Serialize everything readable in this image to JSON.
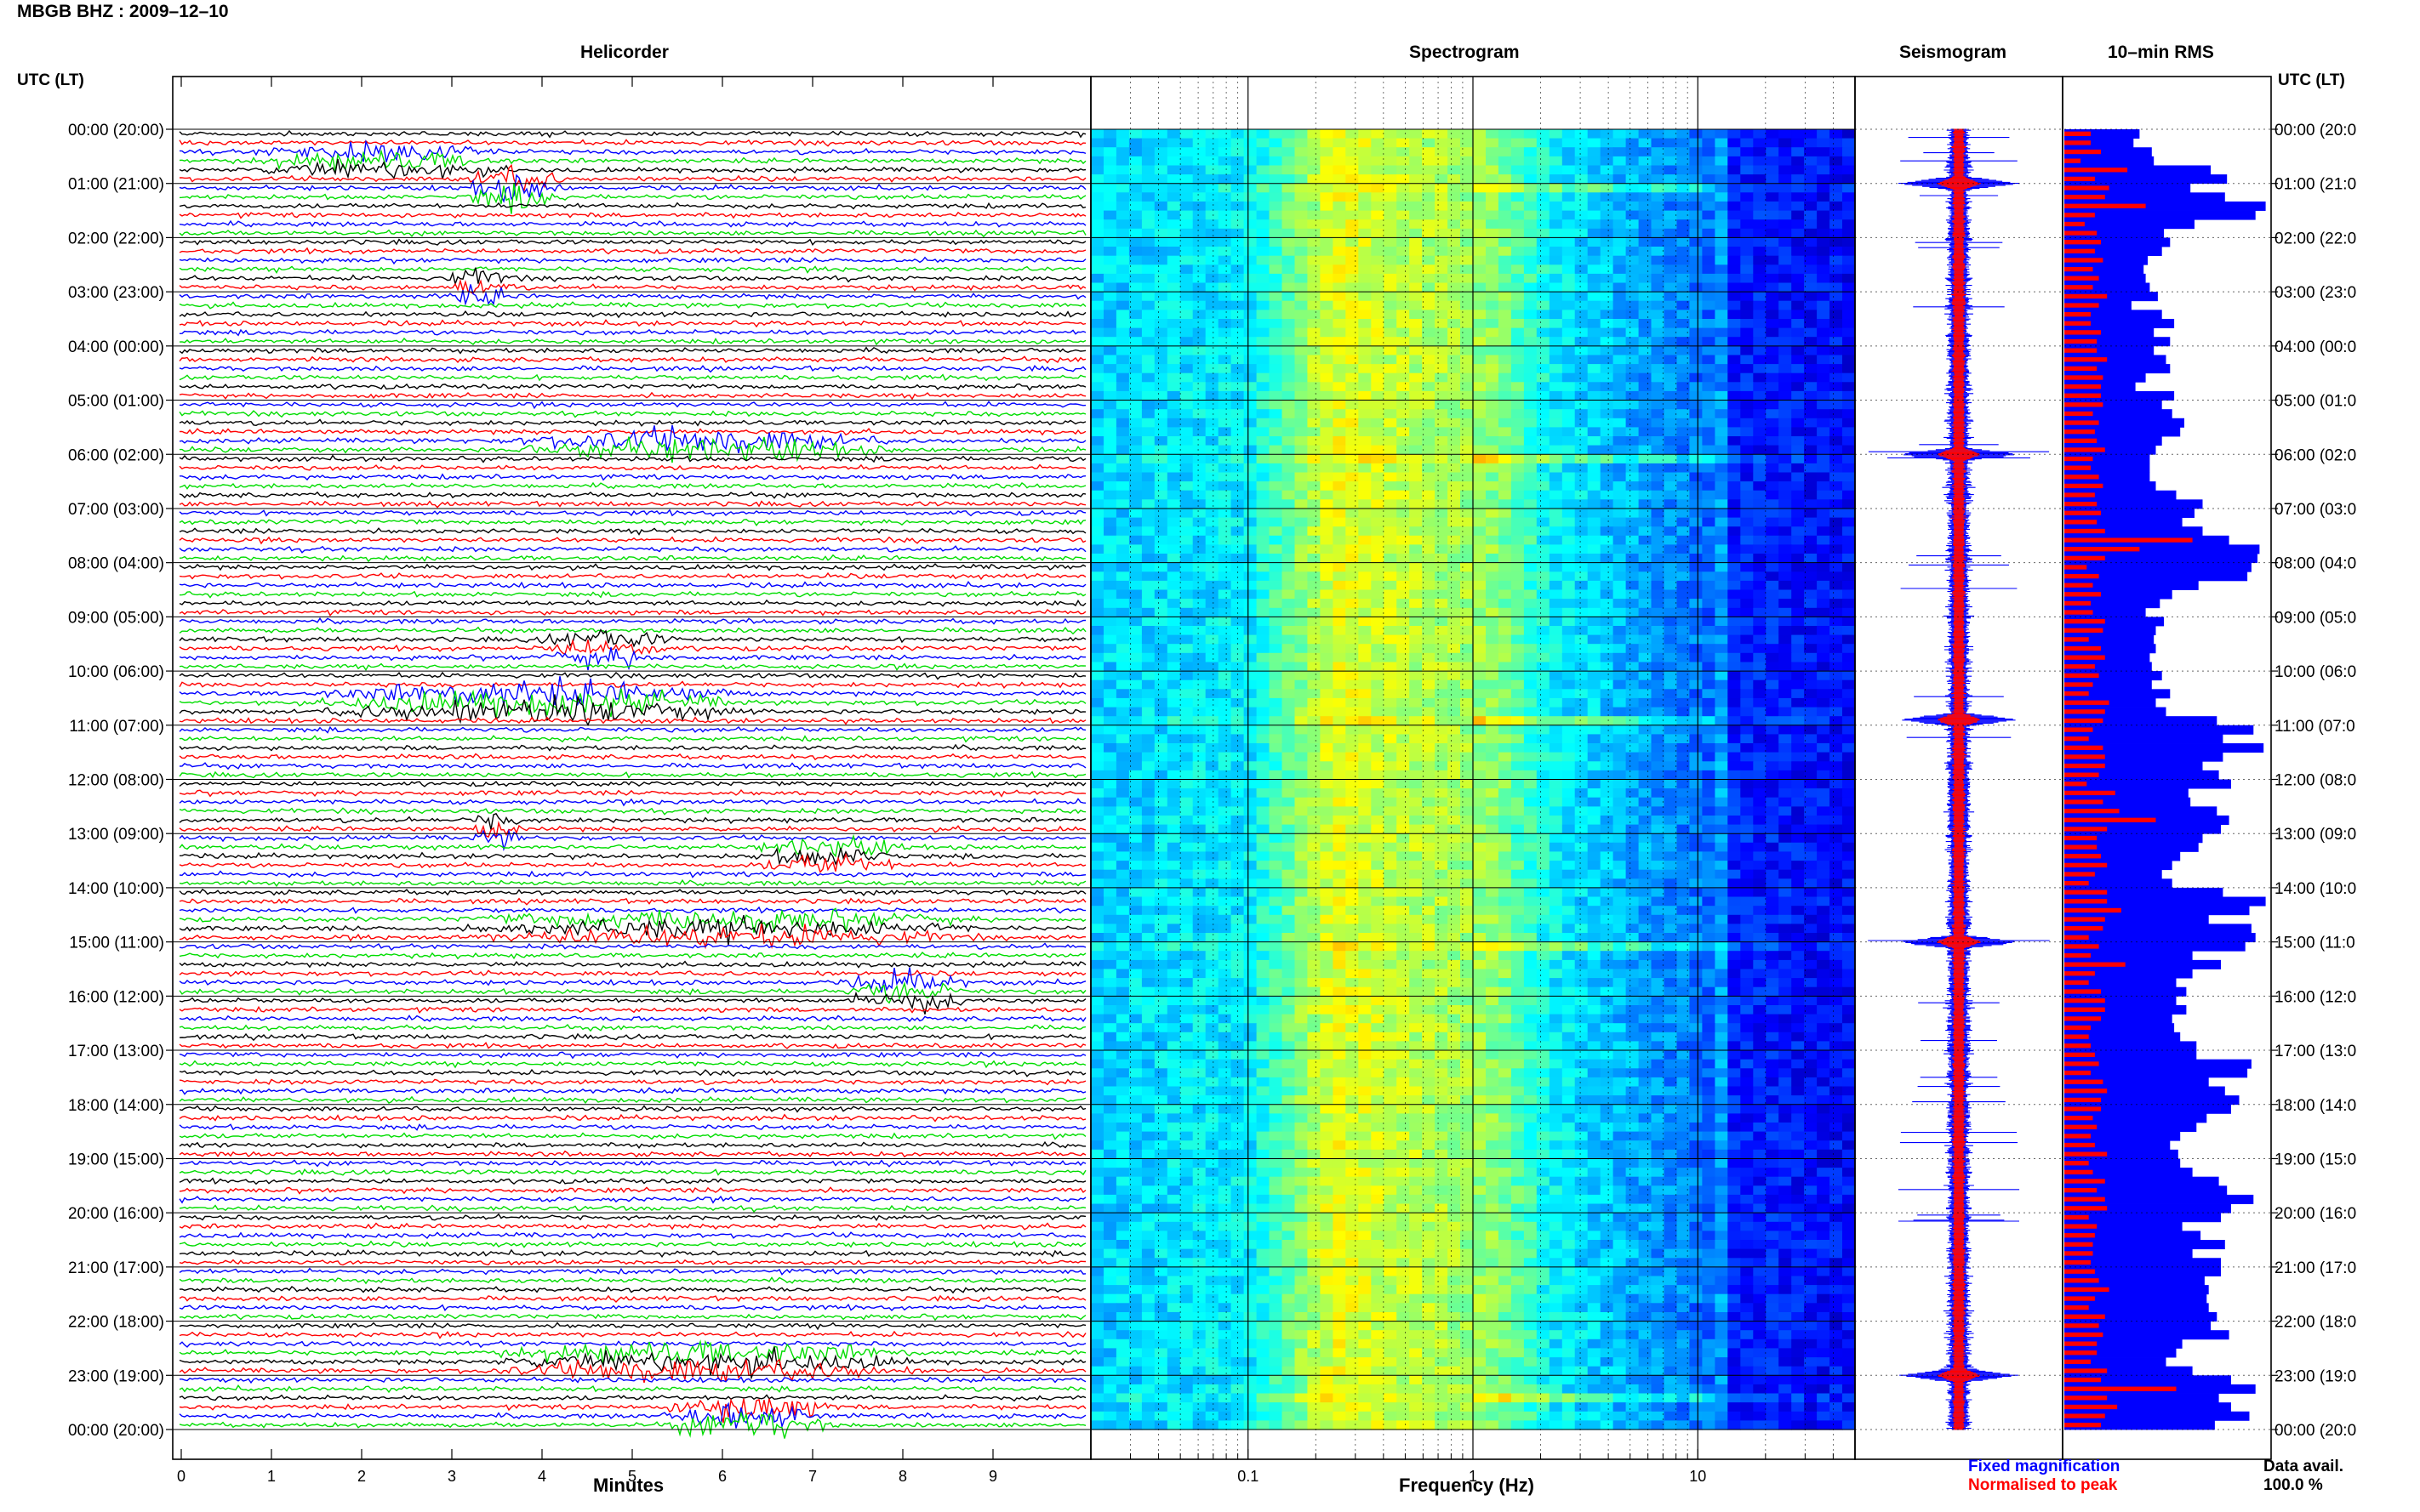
{
  "header": {
    "title": "MBGB BHZ : 2009–12–10",
    "utc_label_left": "UTC (LT)",
    "utc_label_right": "UTC (LT)"
  },
  "panels": {
    "helicorder": "Helicorder",
    "spectrogram": "Spectrogram",
    "seismogram": "Seismogram",
    "rms": "10–min RMS"
  },
  "time_labels": [
    "00:00 (20:00)",
    "01:00 (21:00)",
    "02:00 (22:00)",
    "03:00 (23:00)",
    "04:00 (00:00)",
    "05:00 (01:00)",
    "06:00 (02:00)",
    "07:00 (03:00)",
    "08:00 (04:00)",
    "09:00 (05:00)",
    "10:00 (06:00)",
    "11:00 (07:00)",
    "12:00 (08:00)",
    "13:00 (09:00)",
    "14:00 (10:00)",
    "15:00 (11:00)",
    "16:00 (12:00)",
    "17:00 (13:00)",
    "18:00 (14:00)",
    "19:00 (15:00)",
    "20:00 (16:00)",
    "21:00 (17:00)",
    "22:00 (18:00)",
    "23:00 (19:00)",
    "00:00 (20:00)"
  ],
  "time_labels_right": [
    "00:00 (20:0",
    "01:00 (21:0",
    "02:00 (22:0",
    "03:00 (23:0",
    "04:00 (00:0",
    "05:00 (01:0",
    "06:00 (02:0",
    "07:00 (03:0",
    "08:00 (04:0",
    "09:00 (05:0",
    "10:00 (06:0",
    "11:00 (07:0",
    "12:00 (08:0",
    "13:00 (09:0",
    "14:00 (10:0",
    "15:00 (11:0",
    "16:00 (12:0",
    "17:00 (13:0",
    "18:00 (14:0",
    "19:00 (15:0",
    "20:00 (16:0",
    "21:00 (17:0",
    "22:00 (18:0",
    "23:00 (19:0",
    "00:00 (20:0"
  ],
  "footer": {
    "legend_fixed": "Fixed magnification",
    "legend_normalised": "Normalised to peak",
    "data_avail_label": "Data avail.",
    "data_avail_value": "100.0 %"
  },
  "colors": {
    "trace_cycle": [
      "#000000",
      "#ff0000",
      "#0000ff",
      "#00dd00"
    ],
    "fixed": "#0000ff",
    "normalised": "#ff0000"
  },
  "chart_data": [
    {
      "type": "line",
      "panel": "Helicorder",
      "xlabel": "Minutes",
      "x_ticks": [
        0,
        1,
        2,
        3,
        4,
        5,
        6,
        7,
        8,
        9
      ],
      "xlim": [
        0,
        10
      ],
      "traces_per_hour": 6,
      "hours": 24,
      "events": [
        {
          "hour": 0.55,
          "start_min": 0.7,
          "duration_min": 3.0,
          "amplitude": 1.6
        },
        {
          "hour": 0.95,
          "start_min": 3.1,
          "duration_min": 1.2,
          "amplitude": 2.2
        },
        {
          "hour": 2.9,
          "start_min": 2.8,
          "duration_min": 1.0,
          "amplitude": 1.4
        },
        {
          "hour": 5.75,
          "start_min": 3.5,
          "duration_min": 4.5,
          "amplitude": 2.0
        },
        {
          "hour": 9.5,
          "start_min": 3.9,
          "duration_min": 1.6,
          "amplitude": 1.6
        },
        {
          "hour": 10.5,
          "start_min": 1.4,
          "duration_min": 5.0,
          "amplitude": 2.2
        },
        {
          "hour": 12.9,
          "start_min": 3.2,
          "duration_min": 0.6,
          "amplitude": 1.6
        },
        {
          "hour": 13.4,
          "start_min": 6.3,
          "duration_min": 1.8,
          "amplitude": 1.6
        },
        {
          "hour": 14.7,
          "start_min": 3.0,
          "duration_min": 6.0,
          "amplitude": 1.8
        },
        {
          "hour": 15.9,
          "start_min": 7.3,
          "duration_min": 1.5,
          "amplitude": 1.8
        },
        {
          "hour": 22.6,
          "start_min": 3.3,
          "duration_min": 5.0,
          "amplitude": 2.0
        },
        {
          "hour": 23.7,
          "start_min": 5.3,
          "duration_min": 2.0,
          "amplitude": 2.6
        }
      ]
    },
    {
      "type": "heatmap",
      "panel": "Spectrogram",
      "xlabel": "Frequency (Hz)",
      "x_scale": "log",
      "xlim": [
        0.02,
        50
      ],
      "x_tick_labels": [
        "0.1",
        "1",
        "10"
      ],
      "colormap": "jet",
      "rows": 144
    },
    {
      "type": "line",
      "panel": "Seismogram",
      "series": [
        {
          "name": "Fixed magnification",
          "color": "#0000ff"
        },
        {
          "name": "Normalised to peak",
          "color": "#ff0000"
        }
      ],
      "event_hours": [
        1,
        6,
        10.9,
        15,
        23
      ]
    },
    {
      "type": "bar",
      "panel": "10–min RMS",
      "orientation": "horizontal",
      "bins": 144,
      "series": [
        {
          "name": "Fixed magnification",
          "color": "#0000ff"
        },
        {
          "name": "Normalised to peak",
          "color": "#ff0000"
        }
      ],
      "values_fixed": [
        0.37,
        0.34,
        0.43,
        0.44,
        0.72,
        0.8,
        0.62,
        0.79,
        0.99,
        0.94,
        0.64,
        0.49,
        0.52,
        0.48,
        0.41,
        0.39,
        0.4,
        0.42,
        0.46,
        0.33,
        0.48,
        0.54,
        0.44,
        0.52,
        0.44,
        0.5,
        0.52,
        0.4,
        0.35,
        0.54,
        0.48,
        0.53,
        0.59,
        0.57,
        0.48,
        0.45,
        0.42,
        0.42,
        0.42,
        0.45,
        0.55,
        0.68,
        0.64,
        0.58,
        0.68,
        0.81,
        0.96,
        0.95,
        0.92,
        0.9,
        0.66,
        0.53,
        0.47,
        0.4,
        0.49,
        0.45,
        0.44,
        0.45,
        0.42,
        0.43,
        0.48,
        0.43,
        0.52,
        0.45,
        0.5,
        0.75,
        0.93,
        0.78,
        0.98,
        0.78,
        0.68,
        0.76,
        0.82,
        0.61,
        0.62,
        0.75,
        0.81,
        0.77,
        0.68,
        0.66,
        0.57,
        0.53,
        0.48,
        0.53,
        0.78,
        0.99,
        0.91,
        0.71,
        0.92,
        0.94,
        0.89,
        0.63,
        0.77,
        0.63,
        0.55,
        0.6,
        0.55,
        0.6,
        0.53,
        0.54,
        0.57,
        0.65,
        0.65,
        0.92,
        0.9,
        0.71,
        0.79,
        0.86,
        0.82,
        0.7,
        0.65,
        0.57,
        0.52,
        0.56,
        0.57,
        0.63,
        0.76,
        0.8,
        0.93,
        0.82,
        0.77,
        0.58,
        0.67,
        0.79,
        0.63,
        0.77,
        0.77,
        0.69,
        0.71,
        0.7,
        0.71,
        0.75,
        0.72,
        0.81,
        0.58,
        0.55,
        0.5,
        0.63,
        0.82,
        0.94,
        0.76,
        0.82,
        0.91,
        0.74
      ],
      "values_normalised": [
        0.13,
        0.13,
        0.18,
        0.08,
        0.31,
        0.15,
        0.22,
        0.2,
        0.4,
        0.15,
        0.1,
        0.16,
        0.18,
        0.15,
        0.19,
        0.14,
        0.17,
        0.14,
        0.21,
        0.17,
        0.13,
        0.13,
        0.18,
        0.16,
        0.16,
        0.21,
        0.16,
        0.19,
        0.18,
        0.18,
        0.19,
        0.14,
        0.17,
        0.15,
        0.16,
        0.2,
        0.14,
        0.13,
        0.17,
        0.19,
        0.15,
        0.16,
        0.18,
        0.16,
        0.2,
        0.63,
        0.37,
        0.2,
        0.11,
        0.17,
        0.14,
        0.18,
        0.13,
        0.14,
        0.2,
        0.19,
        0.12,
        0.18,
        0.2,
        0.15,
        0.17,
        0.14,
        0.12,
        0.22,
        0.2,
        0.19,
        0.14,
        0.12,
        0.19,
        0.2,
        0.2,
        0.17,
        0.11,
        0.25,
        0.19,
        0.27,
        0.45,
        0.21,
        0.16,
        0.16,
        0.18,
        0.21,
        0.15,
        0.12,
        0.21,
        0.21,
        0.28,
        0.2,
        0.19,
        0.12,
        0.17,
        0.13,
        0.3,
        0.15,
        0.12,
        0.18,
        0.2,
        0.2,
        0.18,
        0.13,
        0.12,
        0.13,
        0.15,
        0.17,
        0.13,
        0.19,
        0.21,
        0.18,
        0.18,
        0.14,
        0.16,
        0.13,
        0.15,
        0.21,
        0.12,
        0.14,
        0.2,
        0.16,
        0.2,
        0.21,
        0.12,
        0.16,
        0.15,
        0.14,
        0.14,
        0.13,
        0.15,
        0.17,
        0.22,
        0.15,
        0.12,
        0.2,
        0.17,
        0.19,
        0.16,
        0.16,
        0.13,
        0.21,
        0.18,
        0.55,
        0.21,
        0.26,
        0.2,
        0.18
      ]
    }
  ]
}
